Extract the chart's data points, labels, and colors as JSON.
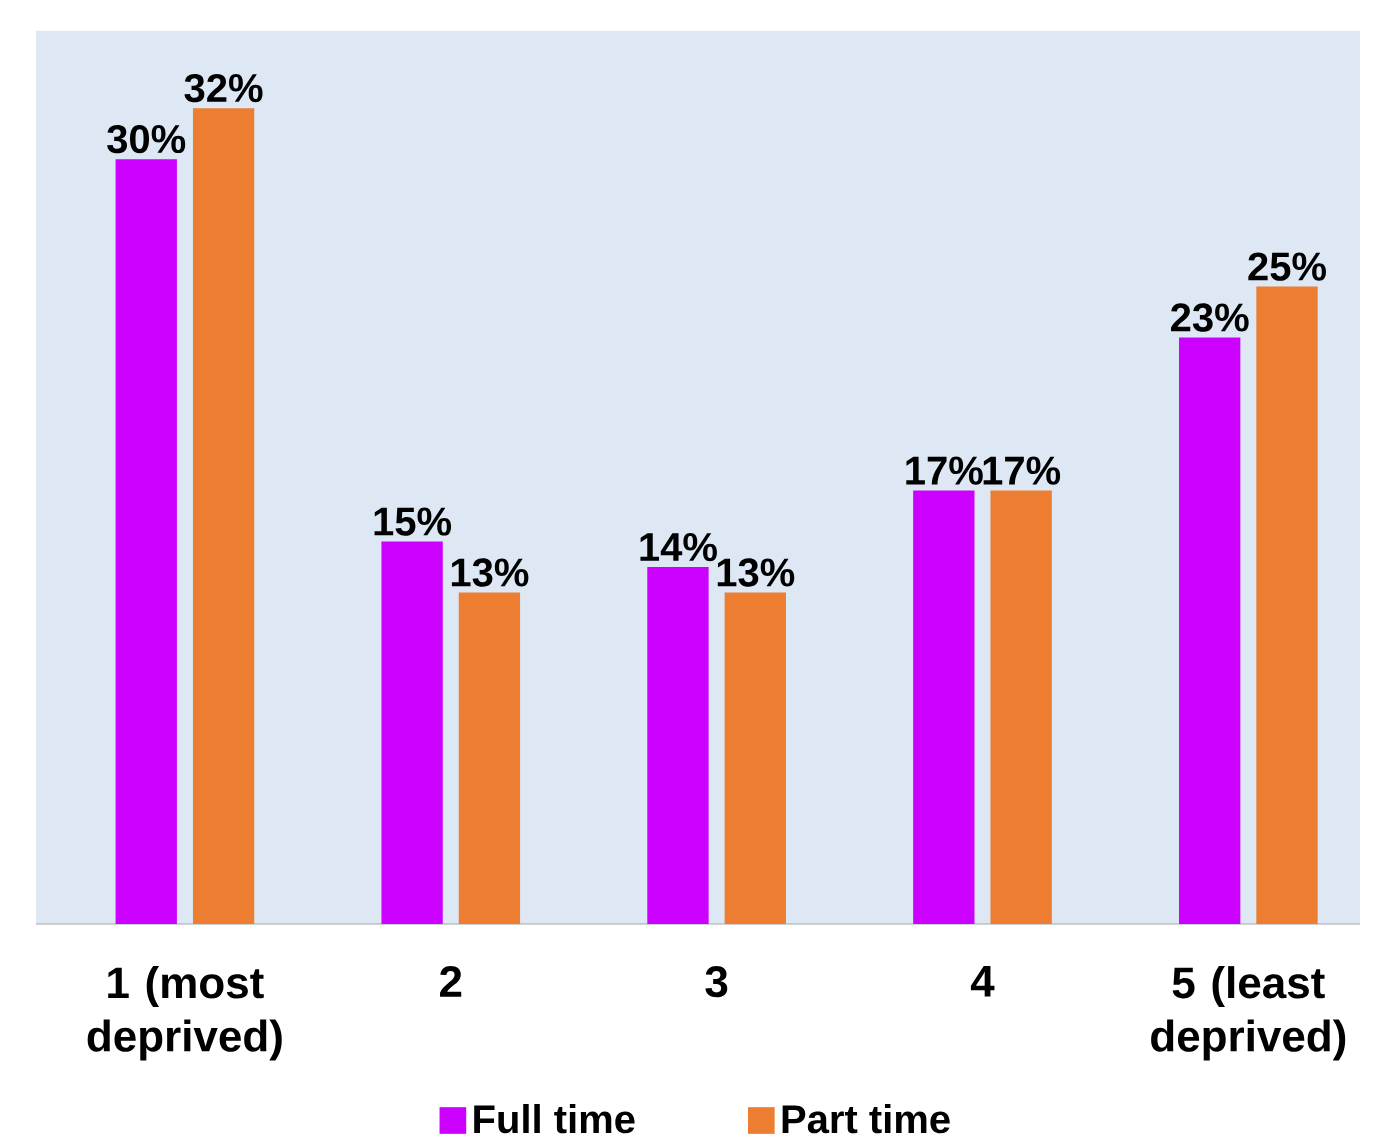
{
  "chart_data": {
    "type": "bar",
    "categories": [
      "1 (most deprived)",
      "2",
      "3",
      "4",
      "5 (least deprived)"
    ],
    "series": [
      {
        "name": "Full time",
        "color": "#cc00ff",
        "values": [
          30,
          15,
          14,
          17,
          23
        ],
        "value_labels": [
          "30%",
          "15%",
          "14%",
          "17%",
          "23%"
        ]
      },
      {
        "name": "Part time",
        "color": "#ed7d31",
        "values": [
          32,
          13,
          13,
          17,
          25
        ],
        "value_labels": [
          "32%",
          "13%",
          "13%",
          "17%",
          "25%"
        ]
      }
    ],
    "legend": "bottom",
    "grid": false
  }
}
